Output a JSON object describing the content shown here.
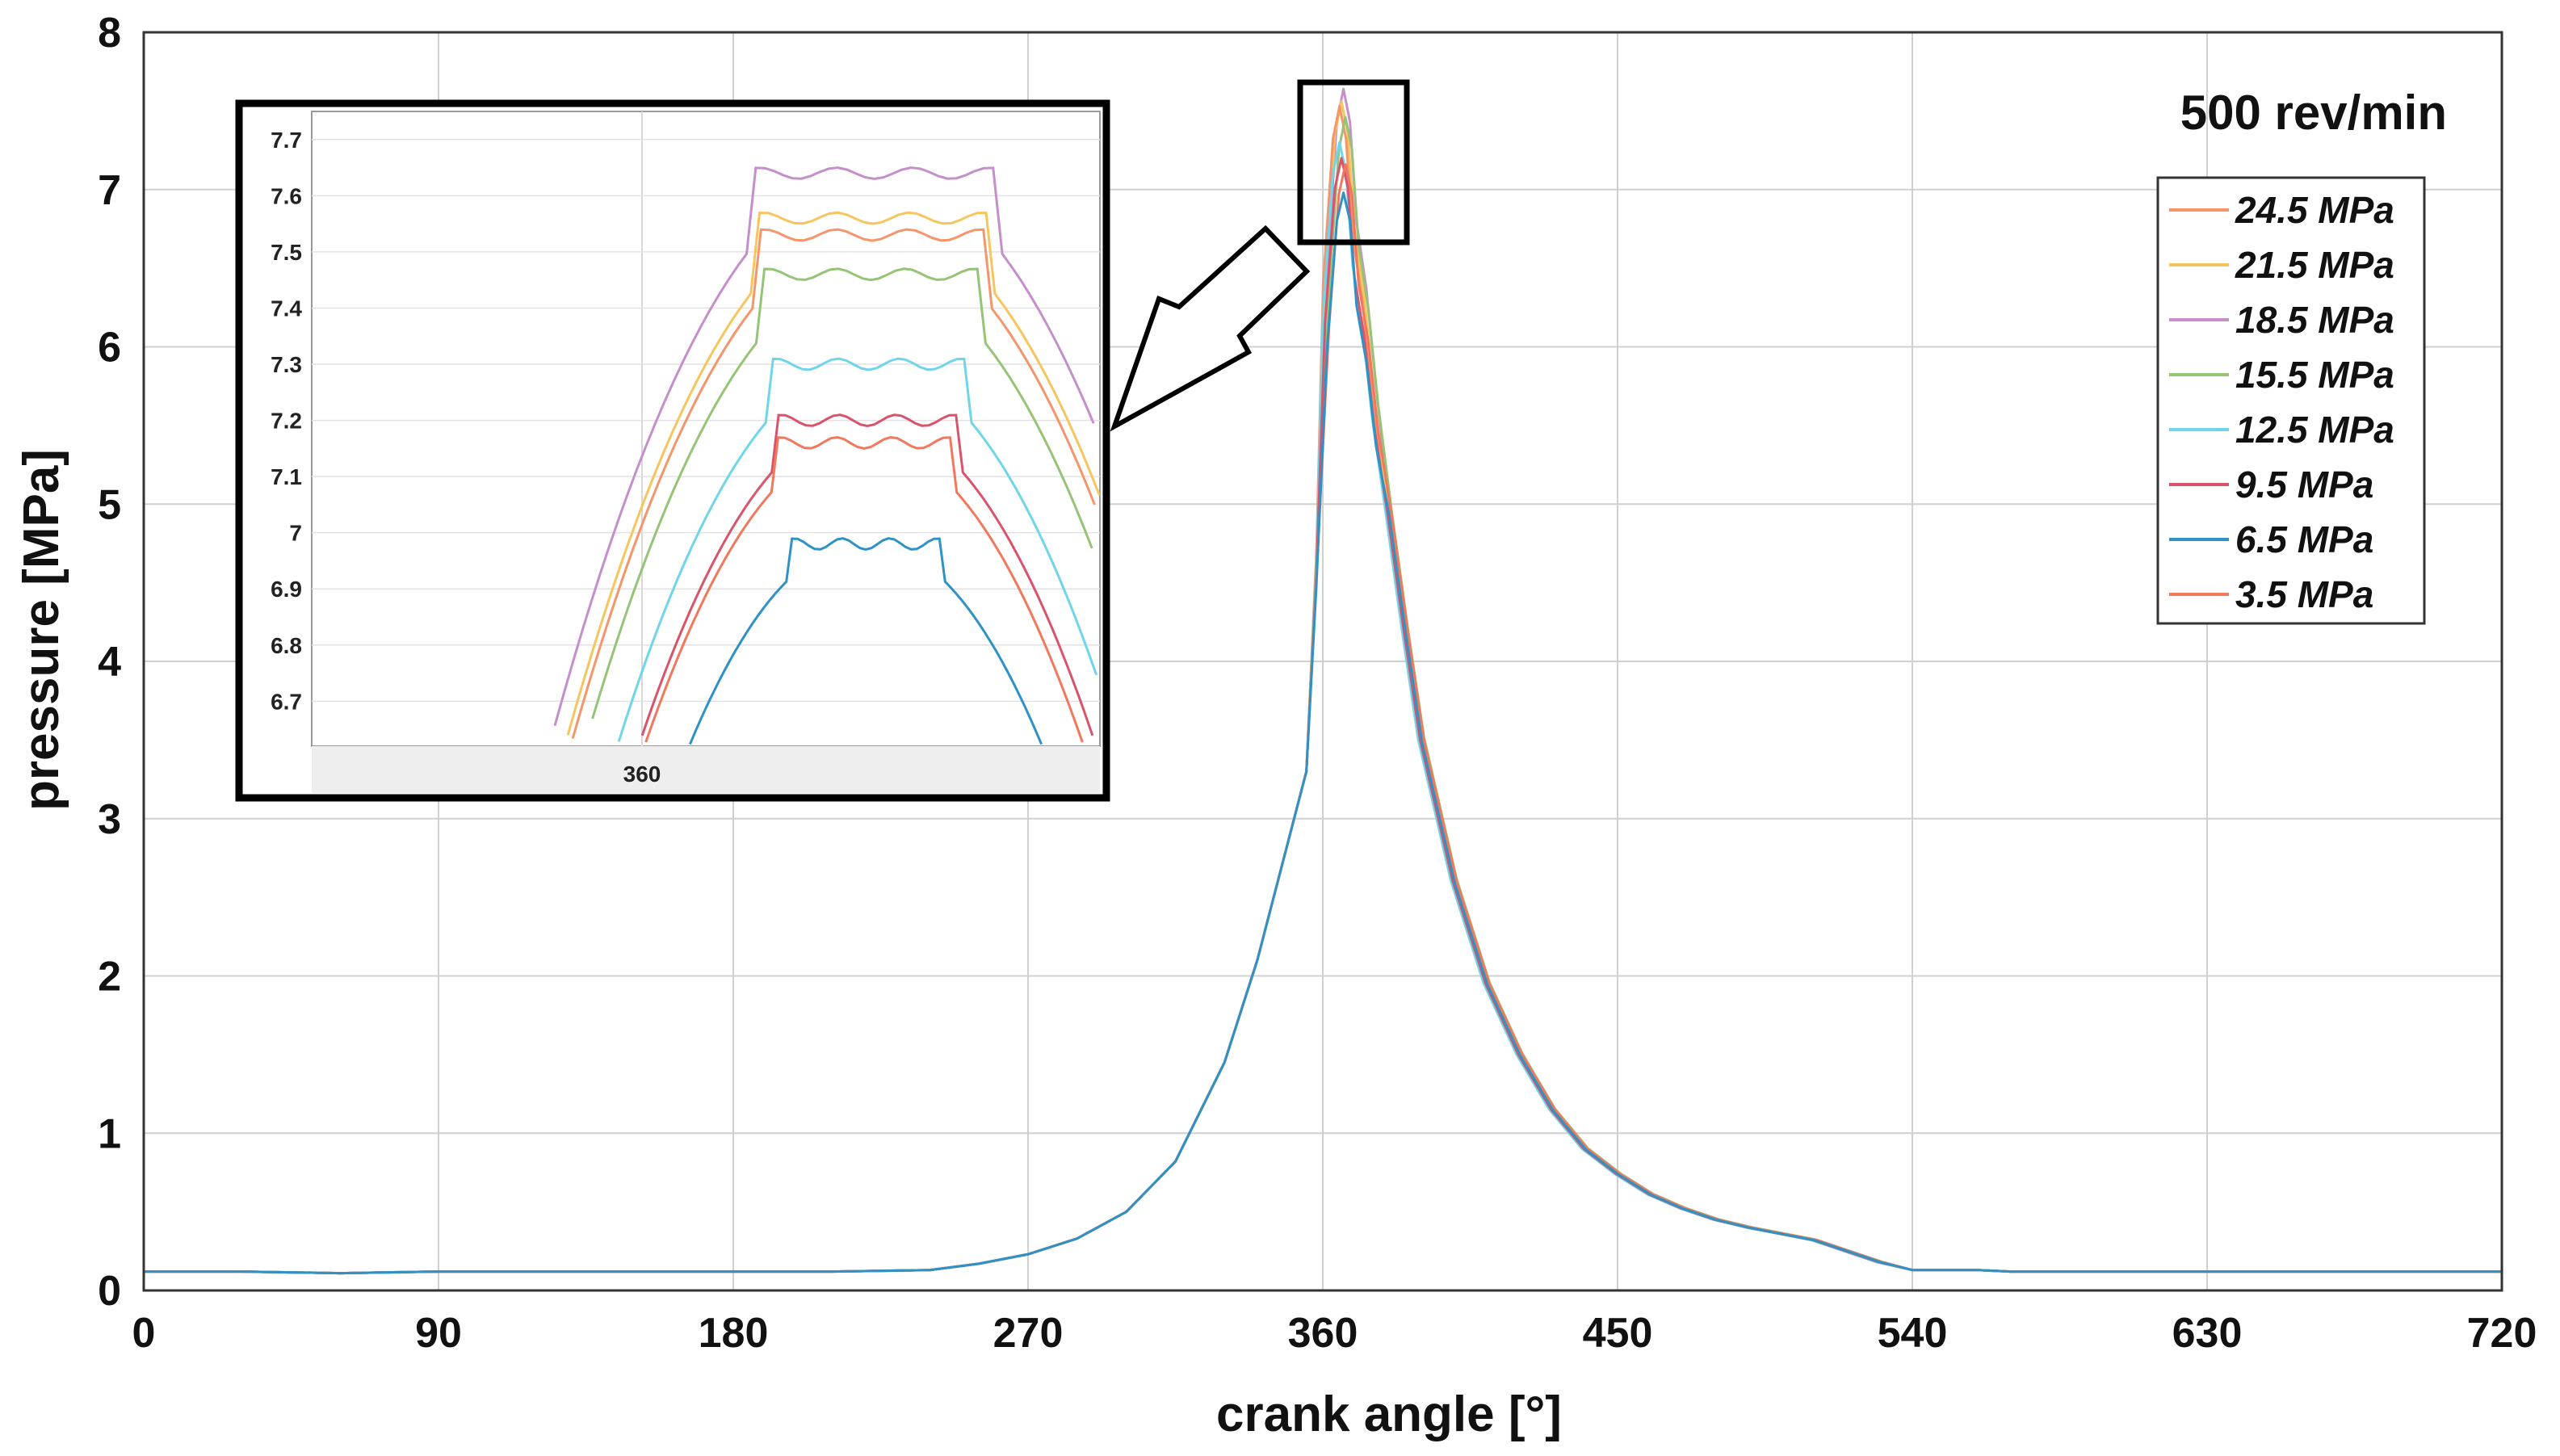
{
  "chart_data": {
    "type": "line",
    "xlabel": "crank angle [°]",
    "ylabel": "pressure [MPa]",
    "xlim": [
      0,
      720
    ],
    "ylim": [
      0,
      8
    ],
    "xticks": [
      "0",
      "90",
      "180",
      "270",
      "360",
      "450",
      "540",
      "630",
      "720"
    ],
    "yticks": [
      "0",
      "1",
      "2",
      "3",
      "4",
      "5",
      "6",
      "7",
      "8"
    ],
    "grid": true,
    "legend_position": "top-right",
    "annotation": "500 rev/min",
    "series": [
      {
        "name": "24.5 MPa",
        "color": "#f4956b",
        "peak": 7.53
      },
      {
        "name": "21.5 MPa",
        "color": "#f7c55e",
        "peak": 7.56
      },
      {
        "name": "18.5 MPa",
        "color": "#c58fcc",
        "peak": 7.64
      },
      {
        "name": "15.5 MPa",
        "color": "#96c477",
        "peak": 7.46
      },
      {
        "name": "12.5 MPa",
        "color": "#6fd6ea",
        "peak": 7.3
      },
      {
        "name": "9.5 MPa",
        "color": "#d9546b",
        "peak": 7.2
      },
      {
        "name": "6.5 MPa",
        "color": "#2f92c6",
        "peak": 6.98
      },
      {
        "name": "3.5 MPa",
        "color": "#f2785d",
        "peak": 7.16
      }
    ],
    "common_curve": {
      "x": [
        0,
        30,
        60,
        90,
        120,
        150,
        180,
        210,
        240,
        255,
        270,
        285,
        300,
        315,
        330,
        340,
        350,
        355,
        358,
        361,
        364,
        366,
        368,
        370,
        373,
        376,
        380,
        385,
        390,
        400,
        410,
        420,
        430,
        440,
        450,
        460,
        470,
        480,
        490,
        500,
        510,
        520,
        530,
        540,
        550,
        560,
        570,
        600,
        630,
        660,
        690,
        720
      ],
      "y": [
        0.12,
        0.12,
        0.11,
        0.12,
        0.12,
        0.12,
        0.12,
        0.12,
        0.13,
        0.17,
        0.23,
        0.33,
        0.5,
        0.82,
        1.45,
        2.1,
        2.9,
        3.3,
        4.6,
        6.3,
        7.2,
        7.4,
        7.2,
        6.6,
        6.2,
        5.6,
        4.95,
        4.2,
        3.5,
        2.6,
        1.95,
        1.5,
        1.15,
        0.9,
        0.74,
        0.61,
        0.52,
        0.45,
        0.4,
        0.36,
        0.32,
        0.25,
        0.18,
        0.13,
        0.13,
        0.13,
        0.12,
        0.12,
        0.12,
        0.12,
        0.12,
        0.12
      ]
    },
    "inset": {
      "xtick": "360",
      "yticks": [
        "6.7",
        "6.8",
        "6.9",
        "7",
        "7.1",
        "7.2",
        "7.3",
        "7.4",
        "7.5",
        "7.6",
        "7.7"
      ],
      "ylim": [
        6.62,
        7.75
      ]
    }
  }
}
